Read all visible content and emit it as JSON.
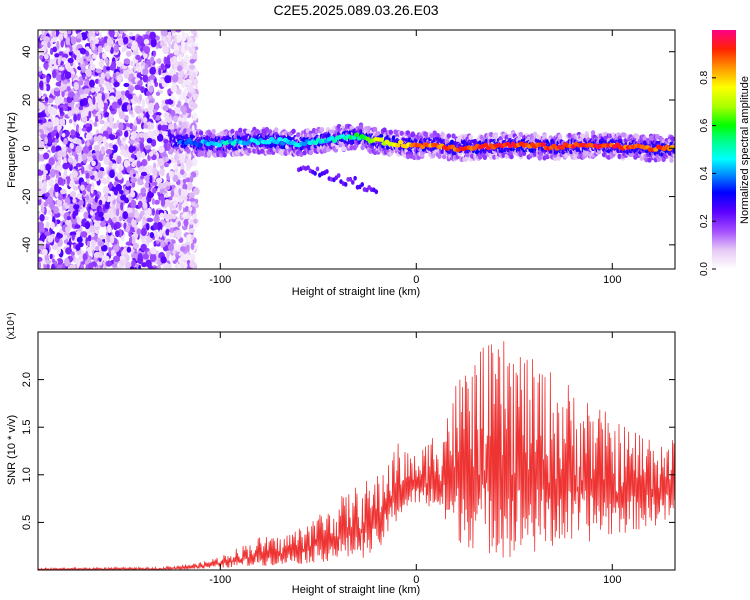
{
  "title": "C2E5.2025.089.03.26.E03",
  "chart_data": [
    {
      "type": "heatmap",
      "xlabel": "Height of straight line (km)",
      "ylabel": "Frequency (Hz)",
      "xlim": [
        -193,
        132
      ],
      "ylim": [
        -50,
        49
      ],
      "xticks": [
        -100,
        0,
        100
      ],
      "yticks": [
        -40,
        -20,
        0,
        20,
        40
      ],
      "colorbar": {
        "label": "Normalized spectral amplitude",
        "range": [
          0,
          1
        ],
        "ticks": [
          0.0,
          0.2,
          0.4,
          0.6,
          0.8
        ]
      },
      "signal_band": [
        {
          "x": -120,
          "freq": 3.0,
          "amp": 0.35
        },
        {
          "x": -110,
          "freq": 2.0,
          "amp": 0.4
        },
        {
          "x": -100,
          "freq": 2.0,
          "amp": 0.45
        },
        {
          "x": -90,
          "freq": 2.5,
          "amp": 0.45
        },
        {
          "x": -80,
          "freq": 3.0,
          "amp": 0.45
        },
        {
          "x": -70,
          "freq": 3.0,
          "amp": 0.45
        },
        {
          "x": -60,
          "freq": 2.0,
          "amp": 0.45
        },
        {
          "x": -50,
          "freq": 3.0,
          "amp": 0.45
        },
        {
          "x": -40,
          "freq": 4.0,
          "amp": 0.5
        },
        {
          "x": -30,
          "freq": 5.0,
          "amp": 0.55
        },
        {
          "x": -20,
          "freq": 3.0,
          "amp": 0.7
        },
        {
          "x": -10,
          "freq": 2.0,
          "amp": 0.75
        },
        {
          "x": 0,
          "freq": 1.0,
          "amp": 0.85
        },
        {
          "x": 10,
          "freq": 1.5,
          "amp": 0.85
        },
        {
          "x": 20,
          "freq": 0.0,
          "amp": 0.9
        },
        {
          "x": 30,
          "freq": 0.5,
          "amp": 0.9
        },
        {
          "x": 40,
          "freq": 1.0,
          "amp": 0.9
        },
        {
          "x": 50,
          "freq": 1.5,
          "amp": 0.9
        },
        {
          "x": 60,
          "freq": 1.0,
          "amp": 0.9
        },
        {
          "x": 70,
          "freq": 0.5,
          "amp": 0.9
        },
        {
          "x": 80,
          "freq": 1.0,
          "amp": 0.9
        },
        {
          "x": 90,
          "freq": 1.5,
          "amp": 0.9
        },
        {
          "x": 100,
          "freq": 1.0,
          "amp": 0.9
        },
        {
          "x": 110,
          "freq": 0.5,
          "amp": 0.9
        },
        {
          "x": 120,
          "freq": 0.0,
          "amp": 0.9
        },
        {
          "x": 130,
          "freq": 0.0,
          "amp": 0.85
        }
      ]
    },
    {
      "type": "line",
      "xlabel": "Height of straight line (km)",
      "ylabel": "SNR (10 * v/v)",
      "y_multiplier": "(x10⁴)",
      "xlim": [
        -193,
        132
      ],
      "ylim": [
        0,
        2.5
      ],
      "xticks": [
        -100,
        0,
        100
      ],
      "yticks": [
        0.5,
        1.0,
        1.5,
        2.0
      ],
      "series": [
        {
          "color": "#ee3333",
          "envelope": {
            "x": [
              -193,
              -130,
              -110,
              -100,
              -90,
              -80,
              -70,
              -60,
              -50,
              -40,
              -30,
              -20,
              -10,
              0,
              10,
              20,
              30,
              40,
              50,
              60,
              70,
              80,
              90,
              100,
              110,
              120,
              130
            ],
            "low": [
              0.0,
              0.0,
              0.01,
              0.02,
              0.03,
              0.04,
              0.05,
              0.06,
              0.08,
              0.1,
              0.12,
              0.15,
              0.5,
              0.7,
              0.6,
              0.3,
              0.2,
              0.15,
              0.1,
              0.15,
              0.2,
              0.25,
              0.3,
              0.35,
              0.4,
              0.45,
              0.5
            ],
            "high": [
              0.02,
              0.03,
              0.08,
              0.15,
              0.25,
              0.35,
              0.35,
              0.45,
              0.6,
              0.75,
              0.9,
              1.0,
              1.35,
              1.2,
              1.5,
              2.0,
              2.3,
              2.4,
              2.45,
              2.2,
              2.1,
              1.95,
              1.8,
              1.6,
              1.5,
              1.45,
              1.4
            ]
          }
        }
      ]
    }
  ]
}
